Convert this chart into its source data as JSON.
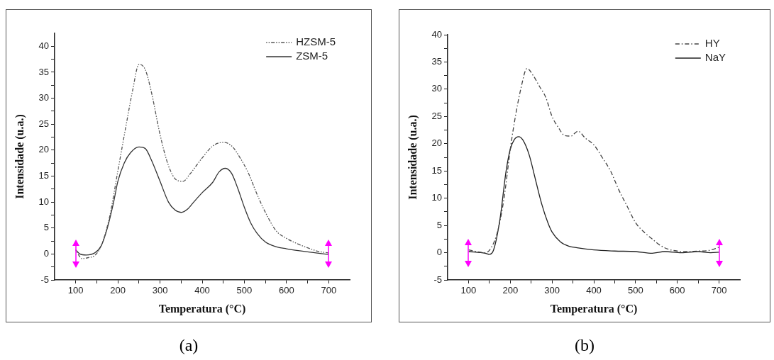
{
  "chart_data": [
    {
      "type": "line",
      "xlabel": "Temperatura (°C)",
      "ylabel": "Intensidade (u.a.)",
      "annotations": [
        "(a)"
      ],
      "xlim": [
        50,
        750
      ],
      "ylim": [
        -5,
        42.5
      ],
      "xticks": [
        100,
        {
          "value": 150,
          "label": null
        },
        200,
        {
          "value": 250,
          "label": null
        },
        300,
        {
          "value": 350,
          "label": null
        },
        400,
        {
          "value": 450,
          "label": null
        },
        500,
        {
          "value": 550,
          "label": null
        },
        600,
        {
          "value": 650,
          "label": null
        },
        700
      ],
      "yticks": [
        -5,
        {
          "value": -2.5,
          "label": null
        },
        0,
        {
          "value": 2.5,
          "label": null
        },
        5,
        {
          "value": 7.5,
          "label": null
        },
        10,
        {
          "value": 12.5,
          "label": null
        },
        15,
        {
          "value": 17.5,
          "label": null
        },
        20,
        {
          "value": 22.5,
          "label": null
        },
        25,
        {
          "value": 27.5,
          "label": null
        },
        30,
        {
          "value": 32.5,
          "label": null
        },
        35,
        {
          "value": 37.5,
          "label": null
        },
        40
      ],
      "grid": false,
      "legend": "top right",
      "marker": "none",
      "series": [
        {
          "name": "HZSM-5",
          "color": "#555555",
          "line_style": "dotted",
          "x": [
            100,
            115,
            130,
            145,
            160,
            180,
            200,
            220,
            235,
            250,
            265,
            280,
            300,
            320,
            340,
            355,
            370,
            400,
            425,
            450,
            470,
            490,
            510,
            530,
            550,
            575,
            600,
            625,
            650,
            675,
            700
          ],
          "values": [
            0.8,
            -0.9,
            -0.7,
            -0.3,
            1.5,
            7,
            16,
            25,
            31.5,
            36.5,
            35.5,
            31,
            23,
            17,
            14.2,
            14,
            15.3,
            18.5,
            20.8,
            21.5,
            20.8,
            18.5,
            15.5,
            11.5,
            8,
            4.5,
            3,
            2,
            1.2,
            0.5,
            0.2
          ]
        },
        {
          "name": "ZSM-5",
          "color": "#333333",
          "line_style": "solid",
          "x": [
            100,
            110,
            125,
            145,
            160,
            175,
            190,
            200,
            215,
            230,
            250,
            265,
            280,
            300,
            320,
            335,
            350,
            365,
            380,
            400,
            425,
            440,
            455,
            470,
            485,
            500,
            515,
            530,
            550,
            575,
            600,
            650,
            700
          ],
          "values": [
            0.8,
            0,
            -0.2,
            0.2,
            1.5,
            5,
            10,
            14,
            17.5,
            19.5,
            20.6,
            20.3,
            18,
            14,
            10,
            8.5,
            8,
            8.6,
            10,
            11.8,
            13.8,
            15.8,
            16.5,
            15.5,
            12.5,
            9,
            6,
            4,
            2.3,
            1.4,
            1,
            0.4,
            -0.1
          ]
        }
      ]
    },
    {
      "type": "line",
      "xlabel": "Temperatura (°C)",
      "ylabel": "Intensidade (u.a.)",
      "annotations": [
        "(b)"
      ],
      "xlim": [
        50,
        750
      ],
      "ylim": [
        -5,
        40
      ],
      "xticks": [
        100,
        {
          "value": 150,
          "label": null
        },
        200,
        {
          "value": 250,
          "label": null
        },
        300,
        {
          "value": 350,
          "label": null
        },
        400,
        {
          "value": 450,
          "label": null
        },
        500,
        {
          "value": 550,
          "label": null
        },
        600,
        {
          "value": 650,
          "label": null
        },
        700
      ],
      "yticks": [
        -5,
        {
          "value": -2.5,
          "label": null
        },
        0,
        {
          "value": 2.5,
          "label": null
        },
        5,
        {
          "value": 7.5,
          "label": null
        },
        10,
        {
          "value": 12.5,
          "label": null
        },
        15,
        {
          "value": 17.5,
          "label": null
        },
        20,
        {
          "value": 22.5,
          "label": null
        },
        25,
        {
          "value": 27.5,
          "label": null
        },
        30,
        {
          "value": 32.5,
          "label": null
        },
        35,
        {
          "value": 37.5,
          "label": null
        },
        40
      ],
      "grid": false,
      "legend": "top right",
      "marker": "none",
      "series": [
        {
          "name": "HY",
          "color": "#444444",
          "line_style": "dashed",
          "x": [
            100,
            140,
            155,
            170,
            185,
            200,
            210,
            225,
            240,
            255,
            270,
            285,
            300,
            315,
            330,
            345,
            362,
            380,
            400,
            420,
            440,
            460,
            480,
            500,
            520,
            540,
            560,
            580,
            600,
            620,
            650,
            675,
            700
          ],
          "values": [
            0.5,
            0,
            1,
            4,
            10,
            19,
            24,
            30,
            33.8,
            32.5,
            30.5,
            28.5,
            25,
            23,
            21.5,
            21.4,
            22.3,
            21,
            19.8,
            17.5,
            15,
            11.5,
            8.5,
            5.5,
            3.8,
            2.5,
            1.3,
            0.6,
            0.3,
            0.2,
            0.3,
            0.4,
            1
          ]
        },
        {
          "name": "NaY",
          "color": "#222222",
          "line_style": "solid",
          "x": [
            100,
            140,
            150,
            160,
            175,
            190,
            200,
            210,
            220,
            230,
            245,
            260,
            275,
            290,
            300,
            320,
            340,
            360,
            400,
            450,
            500,
            540,
            570,
            610,
            650,
            680,
            700
          ],
          "values": [
            0.2,
            -0.1,
            -0.3,
            0.5,
            6,
            15,
            19,
            20.8,
            21.3,
            20.7,
            18,
            13.5,
            9,
            5.5,
            3.8,
            2,
            1.2,
            0.9,
            0.5,
            0.3,
            0.2,
            -0.1,
            0.2,
            0,
            0.2,
            0,
            0.1
          ]
        }
      ]
    }
  ]
}
